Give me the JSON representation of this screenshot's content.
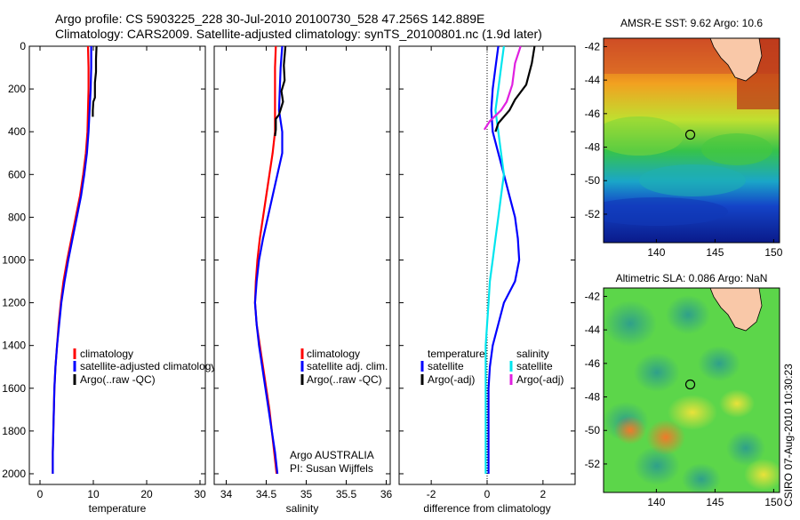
{
  "header": {
    "title_line1": "Argo profile: CS 5903225_228 30-Jul-2010 20100730_528 47.256S 142.889E",
    "title_line2": "Climatology: CARS2009. Satellite-adjusted climatology: synTS_20100801.nc (1.9d later)"
  },
  "footer_stamp": "CSIRO 07-Aug-2010 10:30:23",
  "colors": {
    "climatology": "#ff0000",
    "satellite": "#0000ff",
    "argo": "#000000",
    "salinity_sat": "#00e5ee",
    "salinity_argo": "#e020e0",
    "land": "#f9c8a8"
  },
  "chart_data": [
    {
      "type": "line",
      "xlabel": "temperature",
      "ylabel": "",
      "xlim": [
        -2,
        31
      ],
      "ylim": [
        0,
        2050
      ],
      "y_reversed": true,
      "xticks": [
        0,
        10,
        20,
        30
      ],
      "yticks": [
        0,
        200,
        400,
        600,
        800,
        1000,
        1200,
        1400,
        1600,
        1800,
        2000
      ],
      "legend": "middle-right",
      "series": [
        {
          "name": "climatology",
          "color": "#ff0000",
          "x": [
            9.0,
            9.1,
            9.1,
            9.0,
            8.9,
            8.6,
            8.1,
            7.5,
            6.7,
            5.9,
            5.1,
            4.4,
            3.9,
            3.5,
            3.2,
            2.9,
            2.7,
            2.6,
            2.5,
            2.4,
            2.4
          ],
          "y": [
            0,
            100,
            200,
            300,
            400,
            500,
            600,
            700,
            800,
            900,
            1000,
            1100,
            1200,
            1300,
            1400,
            1500,
            1600,
            1700,
            1800,
            1900,
            2000
          ]
        },
        {
          "name": "satellite-adjusted climatology",
          "color": "#0000ff",
          "x": [
            9.6,
            9.6,
            9.5,
            9.3,
            9.1,
            8.8,
            8.3,
            7.7,
            6.9,
            6.1,
            5.3,
            4.6,
            4.0,
            3.6,
            3.2,
            2.9,
            2.7,
            2.6,
            2.5,
            2.4,
            2.4
          ],
          "y": [
            0,
            100,
            200,
            300,
            400,
            500,
            600,
            700,
            800,
            900,
            1000,
            1100,
            1200,
            1300,
            1400,
            1500,
            1600,
            1700,
            1800,
            1900,
            2000
          ]
        },
        {
          "name": "Argo(..raw -QC)",
          "color": "#000000",
          "x": [
            10.6,
            10.5,
            10.5,
            10.3,
            10.3,
            10.0,
            9.9,
            9.9
          ],
          "y": [
            0,
            60,
            120,
            170,
            240,
            260,
            300,
            330
          ]
        }
      ]
    },
    {
      "type": "line",
      "xlabel": "salinity",
      "ylabel": "",
      "xlim": [
        33.85,
        36.05
      ],
      "ylim": [
        0,
        2050
      ],
      "y_reversed": true,
      "xticks": [
        34,
        34.5,
        35,
        35.5,
        36
      ],
      "legend": "middle-right",
      "annotations": [
        "Argo AUSTRALIA",
        "PI: Susan Wijffels"
      ],
      "series": [
        {
          "name": "climatology",
          "color": "#ff0000",
          "x": [
            34.62,
            34.61,
            34.61,
            34.61,
            34.61,
            34.58,
            34.54,
            34.5,
            34.46,
            34.42,
            34.39,
            34.37,
            34.36,
            34.38,
            34.42,
            34.46,
            34.5,
            34.54,
            34.57,
            34.6,
            34.63
          ],
          "y": [
            0,
            100,
            200,
            300,
            400,
            500,
            600,
            700,
            800,
            900,
            1000,
            1100,
            1200,
            1300,
            1400,
            1500,
            1600,
            1700,
            1800,
            1900,
            2000
          ]
        },
        {
          "name": "satellite adj. clim.",
          "color": "#0000ff",
          "x": [
            34.7,
            34.68,
            34.67,
            34.66,
            34.7,
            34.7,
            34.64,
            34.58,
            34.52,
            34.46,
            34.41,
            34.38,
            34.36,
            34.38,
            34.41,
            34.45,
            34.49,
            34.53,
            34.57,
            34.61,
            34.64
          ],
          "y": [
            0,
            100,
            200,
            300,
            400,
            500,
            600,
            700,
            800,
            900,
            1000,
            1100,
            1200,
            1300,
            1400,
            1500,
            1600,
            1700,
            1800,
            1900,
            2000
          ]
        },
        {
          "name": "Argo(..raw -QC)",
          "color": "#000000",
          "x": [
            34.74,
            34.72,
            34.73,
            34.69,
            34.71,
            34.66,
            34.62,
            34.62,
            34.61
          ],
          "y": [
            0,
            90,
            160,
            210,
            260,
            320,
            340,
            390,
            420
          ]
        }
      ]
    },
    {
      "type": "line",
      "xlabel": "difference from climatology",
      "ylabel": "",
      "xlim": [
        -3.15,
        3.15
      ],
      "ylim": [
        0,
        2050
      ],
      "y_reversed": true,
      "xticks": [
        -2,
        0,
        2
      ],
      "legend": "middle",
      "legend_groups": [
        "temperature",
        "salinity"
      ],
      "series": [
        {
          "name": "satellite",
          "group": "temperature",
          "color": "#0000ff",
          "x": [
            0.4,
            0.3,
            0.2,
            0.15,
            0.2,
            0.4,
            0.6,
            0.8,
            1.0,
            1.1,
            1.15,
            1.0,
            0.6,
            0.4,
            0.2,
            0.1,
            0.05,
            0.05,
            0.05,
            0.05,
            0.05
          ],
          "y": [
            0,
            100,
            200,
            300,
            400,
            500,
            600,
            700,
            800,
            900,
            1000,
            1100,
            1200,
            1300,
            1400,
            1500,
            1600,
            1700,
            1800,
            1900,
            2000
          ]
        },
        {
          "name": "satellite",
          "group": "salinity",
          "color": "#00e5ee",
          "x": [
            0.6,
            0.5,
            0.4,
            0.3,
            0.4,
            0.5,
            0.6,
            0.5,
            0.4,
            0.3,
            0.2,
            0.1,
            0.05,
            0.0,
            -0.05,
            -0.05,
            -0.05,
            -0.05,
            -0.05,
            -0.05,
            -0.05
          ],
          "y": [
            0,
            100,
            200,
            300,
            400,
            500,
            600,
            700,
            800,
            900,
            1000,
            1100,
            1200,
            1300,
            1400,
            1500,
            1600,
            1700,
            1800,
            1900,
            2000
          ]
        },
        {
          "name": "Argo(-adj)",
          "group": "temperature",
          "color": "#000000",
          "x": [
            1.7,
            1.6,
            1.4,
            1.0,
            0.8,
            0.4,
            0.3
          ],
          "y": [
            0,
            80,
            180,
            250,
            300,
            360,
            400
          ]
        },
        {
          "name": "Argo(-adj)",
          "group": "salinity",
          "color": "#e020e0",
          "x": [
            1.2,
            1.0,
            0.9,
            0.7,
            0.5,
            0.1,
            -0.1
          ],
          "y": [
            0,
            80,
            180,
            260,
            300,
            350,
            390
          ]
        }
      ]
    },
    {
      "type": "heatmap",
      "title": "AMSR-E SST: 9.62 Argo: 10.6",
      "xlim": [
        135.5,
        150.5
      ],
      "ylim": [
        -53.7,
        -41.5
      ],
      "xticks": [
        140,
        145,
        150
      ],
      "yticks": [
        -42,
        -44,
        -46,
        -48,
        -50,
        -52
      ],
      "marker": {
        "lon": 142.889,
        "lat": -47.256
      }
    },
    {
      "type": "heatmap",
      "title": "Altimetric SLA: 0.086 Argo: NaN",
      "xlim": [
        135.5,
        150.5
      ],
      "ylim": [
        -53.7,
        -41.5
      ],
      "xticks": [
        140,
        145,
        150
      ],
      "yticks": [
        -42,
        -44,
        -46,
        -48,
        -50,
        -52
      ],
      "marker": {
        "lon": 142.889,
        "lat": -47.256
      }
    }
  ]
}
